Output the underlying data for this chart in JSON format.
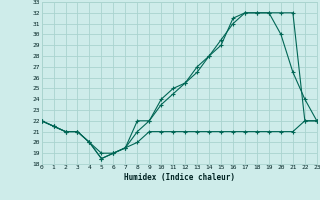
{
  "xlabel": "Humidex (Indice chaleur)",
  "bg_color": "#ceecea",
  "grid_color": "#aad4cf",
  "line_color": "#006655",
  "xlim": [
    0,
    23
  ],
  "ylim": [
    18,
    33
  ],
  "xticks": [
    0,
    1,
    2,
    3,
    4,
    5,
    6,
    7,
    8,
    9,
    10,
    11,
    12,
    13,
    14,
    15,
    16,
    17,
    18,
    19,
    20,
    21,
    22,
    23
  ],
  "yticks": [
    18,
    19,
    20,
    21,
    22,
    23,
    24,
    25,
    26,
    27,
    28,
    29,
    30,
    31,
    32,
    33
  ],
  "line1_x": [
    0,
    1,
    2,
    3,
    4,
    5,
    6,
    7,
    8,
    9,
    10,
    11,
    12,
    13,
    14,
    15,
    16,
    17,
    18,
    19,
    20,
    21,
    22,
    23
  ],
  "line1_y": [
    22,
    21.5,
    21,
    21,
    20,
    19,
    19,
    19.5,
    20,
    21,
    21,
    21,
    21,
    21,
    21,
    21,
    21,
    21,
    21,
    21,
    21,
    21,
    22,
    22
  ],
  "line2_x": [
    0,
    1,
    2,
    3,
    4,
    5,
    6,
    7,
    8,
    9,
    10,
    11,
    12,
    13,
    14,
    15,
    16,
    17,
    18,
    19,
    20,
    21,
    22,
    23
  ],
  "line2_y": [
    22,
    21.5,
    21,
    21,
    20,
    18.5,
    19,
    19.5,
    22,
    22,
    24,
    25,
    25.5,
    27,
    28,
    29,
    31.5,
    32,
    32,
    32,
    30,
    26.5,
    24,
    22
  ],
  "line3_x": [
    0,
    1,
    2,
    3,
    4,
    5,
    6,
    7,
    8,
    9,
    10,
    11,
    12,
    13,
    14,
    15,
    16,
    17,
    18,
    19,
    20,
    21,
    22,
    23
  ],
  "line3_y": [
    22,
    21.5,
    21,
    21,
    20,
    18.5,
    19,
    19.5,
    21,
    22,
    23.5,
    24.5,
    25.5,
    26.5,
    28,
    29.5,
    31,
    32,
    32,
    32,
    32,
    32,
    22,
    22
  ]
}
